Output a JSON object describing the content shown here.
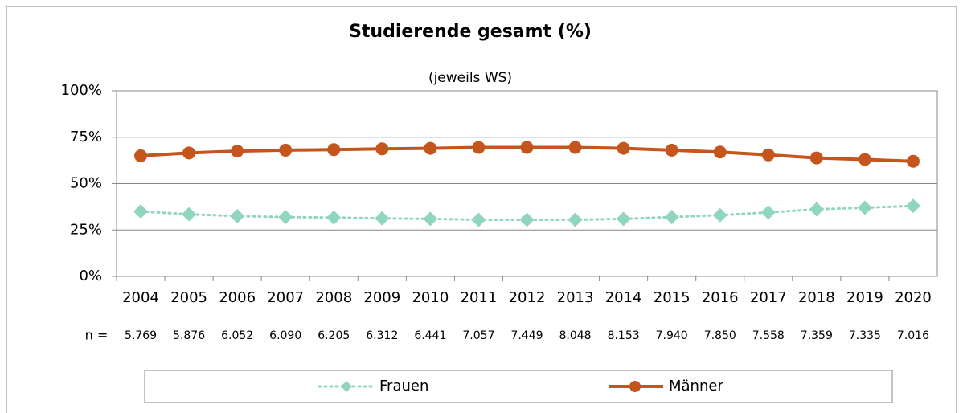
{
  "chart_data": {
    "type": "line",
    "title": "Studierende gesamt (%)",
    "subtitle": "(jeweils WS)",
    "categories": [
      "2004",
      "2005",
      "2006",
      "2007",
      "2008",
      "2009",
      "2010",
      "2011",
      "2012",
      "2013",
      "2014",
      "2015",
      "2016",
      "2017",
      "2018",
      "2019",
      "2020"
    ],
    "series": [
      {
        "name": "Frauen",
        "color": "#8fd6bd",
        "style": "dotted",
        "marker": "diamond",
        "values": [
          35,
          33.5,
          32.5,
          32,
          31.7,
          31.3,
          31,
          30.5,
          30.5,
          30.5,
          31,
          32,
          33,
          34.5,
          36.2,
          37,
          38
        ]
      },
      {
        "name": "Männer",
        "color": "#c4561d",
        "style": "solid",
        "marker": "circle",
        "values": [
          65,
          66.5,
          67.5,
          68,
          68.3,
          68.7,
          69,
          69.5,
          69.5,
          69.5,
          69,
          68,
          67,
          65.5,
          63.8,
          63,
          62
        ]
      }
    ],
    "ylim": [
      0,
      100
    ],
    "yticks": [
      {
        "value": 0,
        "label": "0%"
      },
      {
        "value": 25,
        "label": "25%"
      },
      {
        "value": 50,
        "label": "50%"
      },
      {
        "value": 75,
        "label": "75%"
      },
      {
        "value": 100,
        "label": "100%"
      }
    ],
    "grid": true,
    "legend": "bottom",
    "n_label": "n =",
    "n_values": [
      "5.769",
      "5.876",
      "6.052",
      "6.090",
      "6.205",
      "6.312",
      "6.441",
      "7.057",
      "7.449",
      "8.048",
      "8.153",
      "7.940",
      "7.850",
      "7.558",
      "7.359",
      "7.335",
      "7.016"
    ]
  }
}
